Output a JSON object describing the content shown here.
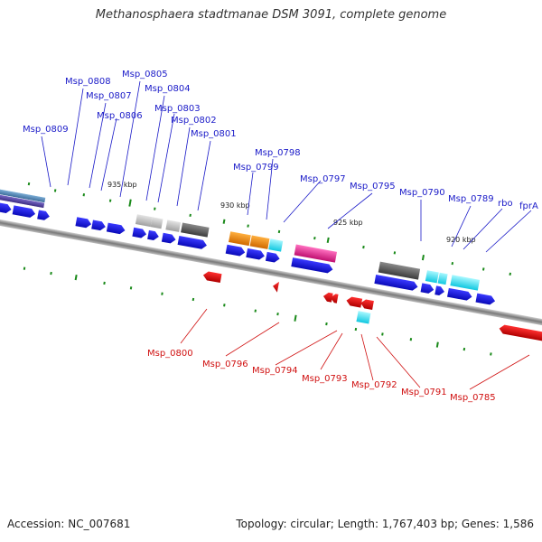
{
  "title": "Methanosphaera stadtmanae DSM 3091, complete genome",
  "footer": {
    "accession": "Accession: NC_007681",
    "stats": "Topology: circular; Length: 1,767,403 bp; Genes: 1,586"
  },
  "scale_labels": [
    "935 kbp",
    "930 kbp",
    "925 kbp",
    "920 kbp"
  ],
  "upper_gene_labels": [
    "Msp_0809",
    "Msp_0808",
    "Msp_0807",
    "Msp_0806",
    "Msp_0805",
    "Msp_0804",
    "Msp_0803",
    "Msp_0802",
    "Msp_0801",
    "Msp_0799",
    "Msp_0798",
    "Msp_0797",
    "Msp_0795",
    "Msp_0790",
    "Msp_0789",
    "rbo",
    "fprA"
  ],
  "lower_gene_labels": [
    "Msp_0800",
    "Msp_0796",
    "Msp_0794",
    "Msp_0793",
    "Msp_0792",
    "Msp_0791",
    "Msp_0785"
  ],
  "colors": {
    "forward_gene": "#1818e6",
    "reverse_gene": "#e01010",
    "label_forward": "#1a1ac8",
    "label_reverse": "#d01010",
    "backbone": "#888888",
    "tick": "#1a8a1a",
    "feature_steelblue": "#4a7fb0",
    "feature_purple": "#5a4aa0",
    "feature_gray": "#bdbdbd",
    "feature_darkgray": "#666666",
    "feature_orange": "#f08a10",
    "feature_cyan": "#30e0f0",
    "feature_magenta": "#e02890"
  }
}
